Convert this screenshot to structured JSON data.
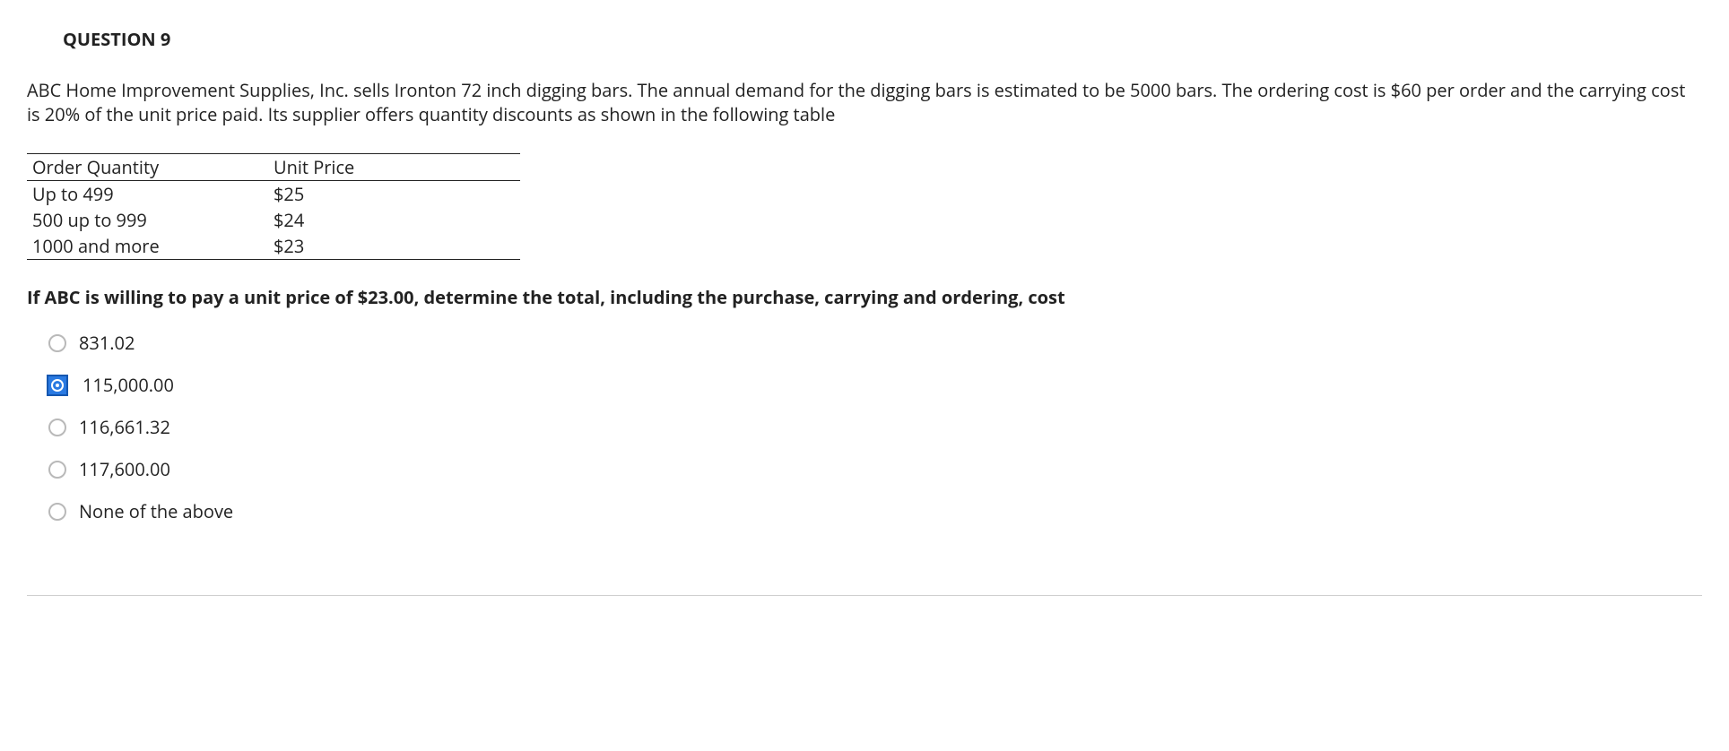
{
  "question": {
    "title": "QUESTION 9",
    "body": "ABC Home Improvement Supplies, Inc. sells Ironton 72 inch digging bars. The annual demand for the digging bars is estimated to be 5000 bars. The ordering cost is $60 per order and the carrying cost is 20% of the unit price paid. Its supplier offers quantity discounts as shown in the following table",
    "table": {
      "columns": [
        "Order Quantity",
        "Unit Price"
      ],
      "rows": [
        [
          "Up to 499",
          "$25"
        ],
        [
          "500 up to 999",
          "$24"
        ],
        [
          "1000 and more",
          "$23"
        ]
      ]
    },
    "prompt": "If ABC is willing to pay a unit price of $23.00, determine the total, including the purchase, carrying and ordering, cost",
    "options": [
      {
        "label": "831.02",
        "selected": false
      },
      {
        "label": "115,000.00",
        "selected": true
      },
      {
        "label": "116,661.32",
        "selected": false
      },
      {
        "label": "117,600.00",
        "selected": false
      },
      {
        "label": "None of the above",
        "selected": false
      }
    ]
  },
  "colors": {
    "text": "#222222",
    "rule": "#cfcfcf",
    "radio_border": "#b9b9b9",
    "selected_bg": "#2a7ae2",
    "selected_border": "#1557b0"
  }
}
